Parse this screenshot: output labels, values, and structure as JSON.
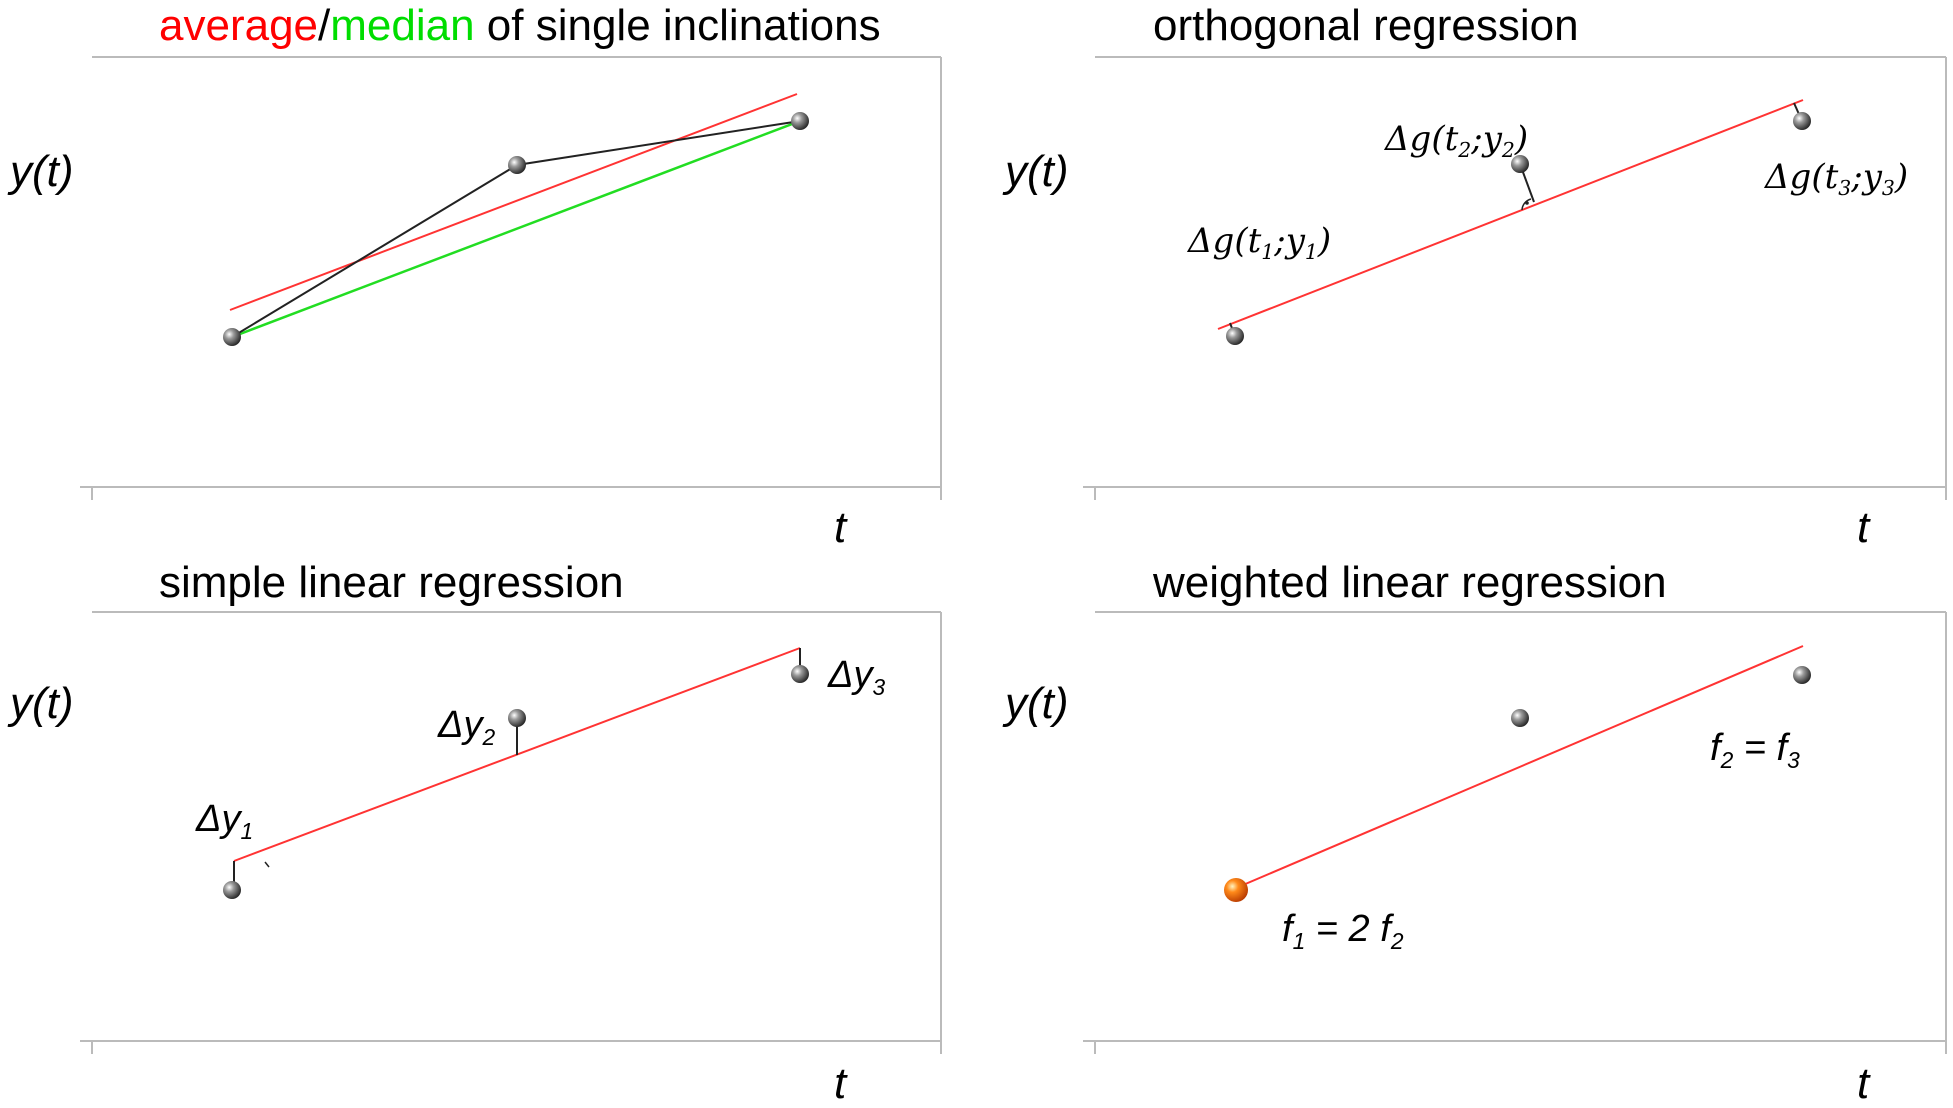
{
  "colors": {
    "red": "#ff3333",
    "green": "#22dd22",
    "black": "#222222",
    "axis": "#bbbbbb",
    "orange": "#ff6600"
  },
  "panels": {
    "p1": {
      "title_avg": "average",
      "title_sep": "/",
      "title_med": "median",
      "title_rest": " of single inclinations",
      "ylabel": "y(t)",
      "xlabel": "t"
    },
    "p2": {
      "title": "orthogonal regression",
      "ylabel": "y(t)",
      "xlabel": "t",
      "ann1": {
        "d": "Δg(t",
        "s1": "1",
        "m": ";y",
        "s2": "1",
        "e": ")"
      },
      "ann2": {
        "d": "Δg(t",
        "s1": "2",
        "m": ";y",
        "s2": "2",
        "e": ")"
      },
      "ann3": {
        "d": "Δg(t",
        "s1": "3",
        "m": ";y",
        "s2": "3",
        "e": ")"
      }
    },
    "p3": {
      "title": "simple linear regression",
      "ylabel": "y(t)",
      "xlabel": "t",
      "ann1": {
        "d": "Δy",
        "s": "1"
      },
      "ann2": {
        "d": "Δy",
        "s": "2"
      },
      "ann3": {
        "d": "Δy",
        "s": "3"
      }
    },
    "p4": {
      "title": "weighted linear regression",
      "ylabel": "y(t)",
      "xlabel": "t",
      "w1": {
        "a": "f",
        "s1": "1",
        "m": " = 2 f",
        "s2": "2"
      },
      "w2": {
        "a": "f",
        "s1": "2",
        "m": " = f",
        "s2": "3"
      }
    }
  }
}
